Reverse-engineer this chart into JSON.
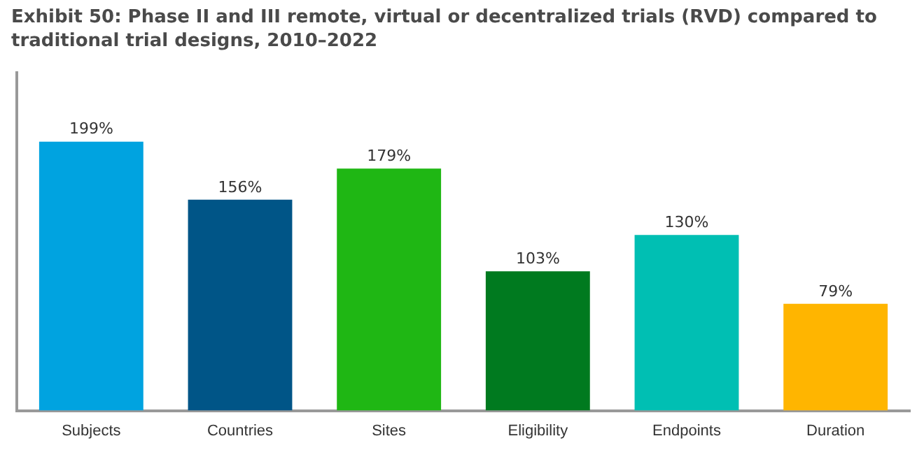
{
  "chart_data": {
    "type": "bar",
    "title": "Exhibit 50: Phase II and III remote, virtual or decentralized trials (RVD) compared to traditional trial designs, 2010–2022",
    "categories": [
      "Subjects",
      "Countries",
      "Sites",
      "Eligibility",
      "Endpoints",
      "Duration"
    ],
    "values": [
      199,
      156,
      179,
      103,
      130,
      79
    ],
    "value_labels": [
      "199%",
      "156%",
      "179%",
      "103%",
      "130%",
      "79%"
    ],
    "colors": [
      "#00a3e0",
      "#005587",
      "#1fb714",
      "#007a1f",
      "#00bfb3",
      "#ffb500"
    ],
    "grid": false,
    "legend": false
  }
}
